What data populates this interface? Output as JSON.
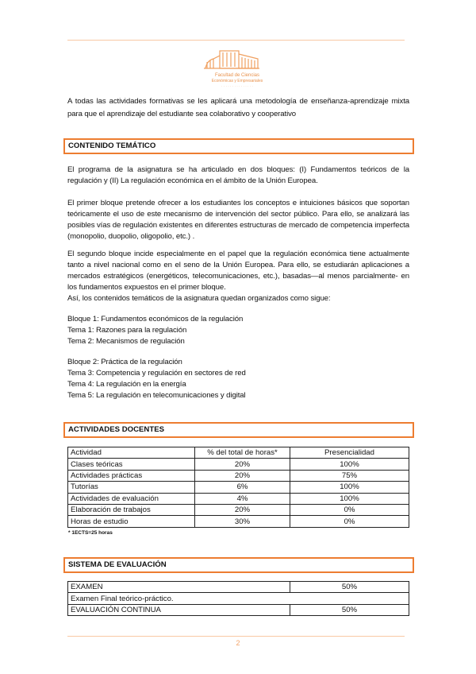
{
  "header": {
    "logo_text": "Facultad de Ciencias Económicas y Empresariales"
  },
  "intro": "A todas las actividades formativas se les aplicará una metodología de enseñanza-aprendizaje mixta para que el aprendizaje del estudiante sea colaborativo y cooperativo",
  "contenido": {
    "title": "CONTENIDO TEMÁTICO",
    "paragraphs": [
      "El programa de la asignatura se ha articulado en dos bloques: (I) Fundamentos teóricos de la regulación y (II) La regulación económica en el ámbito de la Unión Europea.",
      "El primer bloque pretende ofrecer a los estudiantes los conceptos e intuiciones básicos que soportan teóricamente el uso de este mecanismo de intervención del sector público. Para ello, se analizará las posibles vías de regulación existentes en diferentes estructuras de mercado de competencia imperfecta (monopolio, duopolio, oligopolio, etc.) .",
      "El segundo bloque incide especialmente en el papel que la regulación económica tiene actualmente tanto a nivel nacional como en el seno de la Unión Europea. Para ello, se estudiarán aplicaciones a mercados estratégicos (energéticos, telecomunicaciones, etc.), basadas—al menos parcialmente- en los fundamentos expuestos en el primer bloque.",
      "Así, los contenidos temáticos de la asignatura quedan organizados como sigue:"
    ],
    "bloque1": [
      "Bloque 1: Fundamentos económicos de la regulación",
      "Tema 1: Razones para la regulación",
      "Tema 2: Mecanismos de regulación"
    ],
    "bloque2": [
      "Bloque 2: Práctica de la regulación",
      "Tema 3: Competencia y regulación en sectores de red",
      "Tema 4: La regulación en la energía",
      "Tema 5: La regulación en telecomunicaciones y digital"
    ]
  },
  "actividades": {
    "title": "ACTIVIDADES DOCENTES",
    "headers": [
      "Actividad",
      "% del total de horas*",
      "Presencialidad"
    ],
    "rows": [
      [
        "Clases teóricas",
        "20%",
        "100%"
      ],
      [
        "Actividades prácticas",
        "20%",
        "75%"
      ],
      [
        "Tutorías",
        "6%",
        "100%"
      ],
      [
        "Actividades de evaluación",
        "4%",
        "100%"
      ],
      [
        "Elaboración de trabajos",
        "20%",
        "0%"
      ],
      [
        "Horas de estudio",
        "30%",
        "0%"
      ]
    ],
    "footnote": "* 1ECTS=25 horas"
  },
  "evaluacion": {
    "title": "SISTEMA DE EVALUACIÓN",
    "rows": [
      {
        "label": "EXAMEN",
        "value": "50%"
      },
      {
        "label": "Examen Final teórico-práctico.",
        "value": ""
      },
      {
        "label": "EVALUACIÓN CONTINUA",
        "value": "50%"
      }
    ]
  },
  "page_number": "2",
  "colors": {
    "accent": "#ed7d31",
    "rule": "#f9c9a4"
  }
}
